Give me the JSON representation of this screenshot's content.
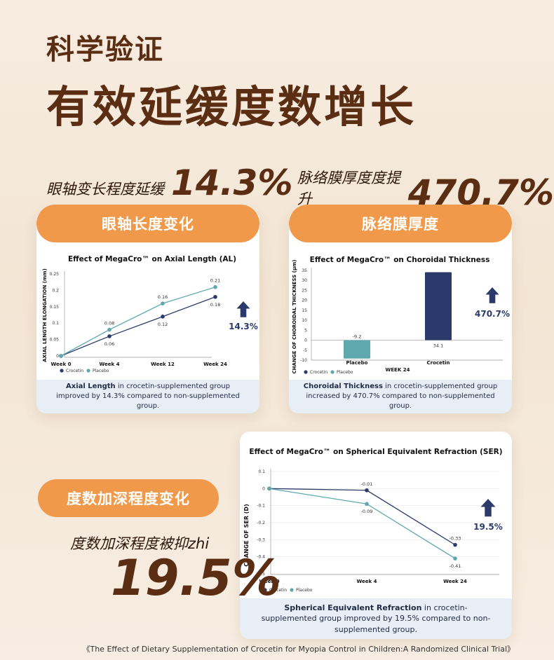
{
  "header": {
    "title_small": "科学验证",
    "title_big": "有效延缓度数增长"
  },
  "stat_left": {
    "label": "眼轴变长程度延缓",
    "value": "14.3%"
  },
  "stat_right": {
    "label": "脉络膜厚度度提升",
    "value": "470.7%"
  },
  "pill_left": "眼轴长度变化",
  "pill_right": "脉络膜厚度",
  "pill_ser": "度数加深程度变化",
  "stat_ser": {
    "label": "度数加深程度被抑zhi",
    "value": "19.5%"
  },
  "reference": "《The Effect of Dietary Supplementation of Crocetin for Myopia Control in Children:A Randomized Clinical Trial》",
  "colors": {
    "crocetin": "#2b3a6b",
    "placebo": "#5fa8ae",
    "accent": "#f0994a",
    "brown": "#5b2d12"
  },
  "icons": {
    "arrow": "up-arrow-icon"
  },
  "chart_data": [
    {
      "type": "line",
      "title": "Effect of MegaCro™ on Axial Length (AL)",
      "ylabel": "AXIAL LENGTH ELONGATION (mm)",
      "categories": [
        "Week 0",
        "Week 4",
        "Week 12",
        "Week 24"
      ],
      "ylim": [
        0,
        0.25
      ],
      "yticks": [
        "0",
        "0.05",
        "0.1",
        "0.15",
        "0.2",
        "0.25"
      ],
      "series": [
        {
          "name": "Crocetin",
          "values": [
            0,
            0.06,
            0.12,
            0.18
          ],
          "labels": [
            "",
            "0.06",
            "0.12",
            "0.18"
          ]
        },
        {
          "name": "Placebo",
          "values": [
            0,
            0.08,
            0.16,
            0.21
          ],
          "labels": [
            "",
            "0.08",
            "0.16",
            "0.21"
          ]
        }
      ],
      "annotation": "14.3%",
      "footnote_bold": "Axial Length",
      "footnote": " in crocetin-supplemented group improved by 14.3% compared to non-supplemented group."
    },
    {
      "type": "bar",
      "title": "Effect of MegaCro™ on Choroidal Thickness",
      "ylabel": "CHANGE OF CHOROIDAL THICKNESS (μm)",
      "xlabel": "WEEK 24",
      "categories": [
        "Placebo",
        "Crocetin"
      ],
      "values": [
        -9.2,
        34.1
      ],
      "value_labels": [
        "-9.2",
        "34.1"
      ],
      "ylim": [
        -10,
        35
      ],
      "yticks": [
        "-10",
        "-5",
        "0",
        "5",
        "10",
        "15",
        "20",
        "25",
        "30",
        "35"
      ],
      "legend": [
        "Crocetin",
        "Placebo"
      ],
      "annotation": "470.7%",
      "footnote_bold": "Choroidal Thickness",
      "footnote": " in crocetin-supplemented group increased by 470.7% compared to non-supplemented group."
    },
    {
      "type": "line",
      "title": "Effect of MegaCro™ on Spherical Equivalent Refraction (SER)",
      "ylabel": "CHANGE OF SER (D)",
      "categories": [
        "Week 0",
        "Week 4",
        "Week 24"
      ],
      "ylim": [
        -0.5,
        0.1
      ],
      "yticks": [
        "0.1",
        "0",
        "-0.1",
        "-0.2",
        "-0.3",
        "-0.4",
        "-0.5"
      ],
      "series": [
        {
          "name": "Crocetin",
          "values": [
            0,
            -0.01,
            -0.33
          ],
          "labels": [
            "",
            "-0.01",
            "-0.33"
          ]
        },
        {
          "name": "Placebo",
          "values": [
            0,
            -0.09,
            -0.41
          ],
          "labels": [
            "",
            "-0.09",
            "-0.41"
          ]
        }
      ],
      "annotation": "19.5%",
      "footnote_bold": "Spherical Equivalent Refraction",
      "footnote": " in crocetin-supplemented group improved by 19.5% compared to non-supplemented group."
    }
  ]
}
